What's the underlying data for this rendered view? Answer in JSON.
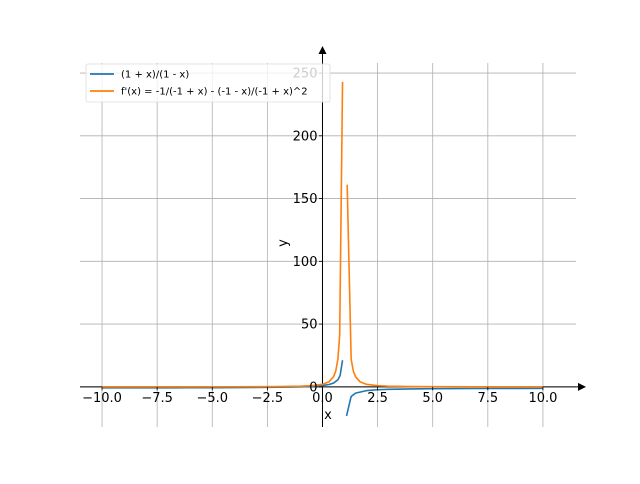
{
  "chart_data": {
    "type": "line",
    "title": "",
    "xlabel": "x",
    "ylabel": "y",
    "xlim": [
      -11,
      11.5
    ],
    "ylim": [
      -32,
      262
    ],
    "x_ticks": [
      -10,
      -7.5,
      -5,
      -2.5,
      0,
      2.5,
      5,
      7.5,
      10
    ],
    "x_tick_labels": [
      "−10.0",
      "−7.5",
      "−5.0",
      "−2.5",
      "0.0",
      "2.5",
      "5.0",
      "7.5",
      "10.0"
    ],
    "y_ticks": [
      0,
      50,
      100,
      150,
      200,
      250
    ],
    "y_tick_labels": [
      "0",
      "50",
      "100",
      "150",
      "200",
      "250"
    ],
    "grid": true,
    "legend_position": "top-left",
    "series": [
      {
        "name": "(1 + x)/(1 - x)",
        "color": "#1f77b4",
        "segments": [
          {
            "x": [
              -10,
              -9,
              -8,
              -7,
              -6,
              -5,
              -4,
              -3,
              -2,
              -1.5,
              -1,
              -0.5,
              0,
              0.3,
              0.5,
              0.7,
              0.8,
              0.91
            ],
            "y": [
              -0.82,
              -0.8,
              -0.78,
              -0.75,
              -0.71,
              -0.67,
              -0.6,
              -0.5,
              -0.33,
              -0.2,
              0,
              0.33,
              1,
              1.86,
              3,
              5.67,
              9,
              21.2
            ]
          },
          {
            "x": [
              1.09,
              1.3,
              1.5,
              2,
              2.5,
              3,
              4,
              5,
              6,
              7,
              8,
              9,
              10
            ],
            "y": [
              -23.2,
              -7.67,
              -5,
              -3,
              -2.33,
              -2,
              -1.67,
              -1.5,
              -1.4,
              -1.33,
              -1.29,
              -1.25,
              -1.22
            ]
          }
        ]
      },
      {
        "name": "f'(x) = -1/(-1 + x) - (-1 - x)/(-1 + x)^2",
        "color": "#ff7f0e",
        "segments": [
          {
            "x": [
              -10,
              -8,
              -6,
              -4,
              -3,
              -2,
              -1,
              -0.5,
              0,
              0.3,
              0.5,
              0.6,
              0.7,
              0.78,
              0.91
            ],
            "y": [
              0.017,
              0.025,
              0.041,
              0.08,
              0.125,
              0.22,
              0.5,
              0.89,
              2,
              4.08,
              8,
              12.5,
              22.2,
              41.3,
              243
            ]
          },
          {
            "x": [
              1.12,
              1.3,
              1.4,
              1.5,
              1.7,
              2,
              2.5,
              3,
              4,
              5,
              7,
              10
            ],
            "y": [
              161,
              22.2,
              12.5,
              8,
              4.08,
              2,
              0.89,
              0.5,
              0.22,
              0.125,
              0.056,
              0.025
            ]
          },
          {
            "x": [
              1.1
            ],
            "y": [
              200
            ]
          }
        ]
      }
    ]
  }
}
